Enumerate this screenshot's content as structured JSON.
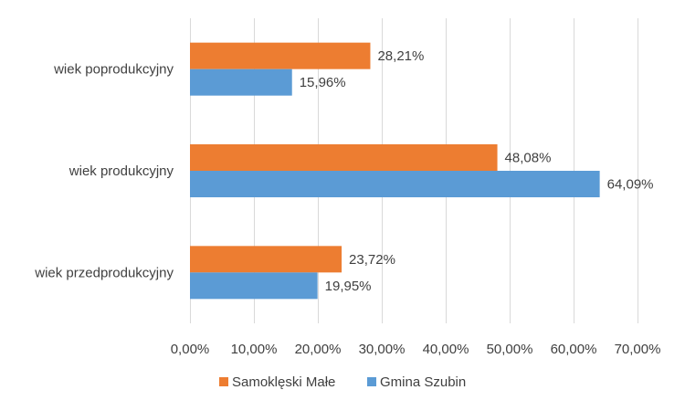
{
  "chart_data": {
    "type": "bar",
    "orientation": "horizontal",
    "categories": [
      "wiek poprodukcyjny",
      "wiek produkcyjny",
      "wiek przedprodukcyjny"
    ],
    "series": [
      {
        "name": "Samoklęski Małe",
        "color": "#ed7d31",
        "values": [
          28.21,
          48.08,
          23.72
        ],
        "labels": [
          "28,21%",
          "48,08%",
          "23,72%"
        ]
      },
      {
        "name": "Gmina Szubin",
        "color": "#5b9bd5",
        "values": [
          15.96,
          64.09,
          19.95
        ],
        "labels": [
          "15,96%",
          "64,09%",
          "19,95%"
        ]
      }
    ],
    "xlim": [
      0,
      70
    ],
    "xticks": [
      0,
      10,
      20,
      30,
      40,
      50,
      60,
      70
    ],
    "xtick_labels": [
      "0,00%",
      "10,00%",
      "20,00%",
      "30,00%",
      "40,00%",
      "50,00%",
      "60,00%",
      "70,00%"
    ],
    "grid": true,
    "legend_position": "bottom"
  }
}
